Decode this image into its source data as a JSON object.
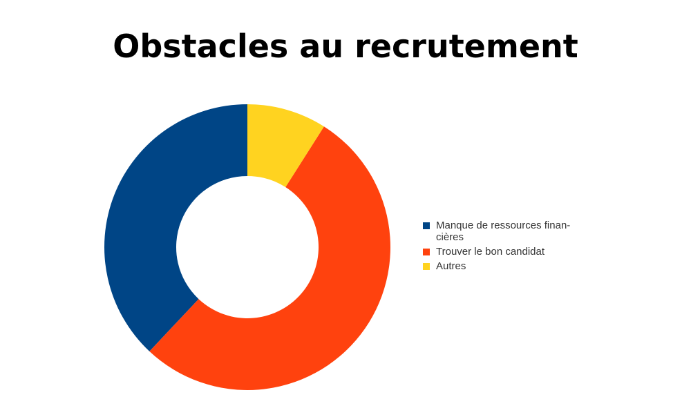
{
  "chart_data": {
    "type": "donut",
    "title": "Obstacles au recrutement",
    "categories": [
      "Manque de ressources finan-cières",
      "Trouver le bon candidat",
      "Autres"
    ],
    "values": [
      38,
      53,
      9
    ],
    "colors": [
      "#004586",
      "#ff420e",
      "#ffd320"
    ]
  }
}
